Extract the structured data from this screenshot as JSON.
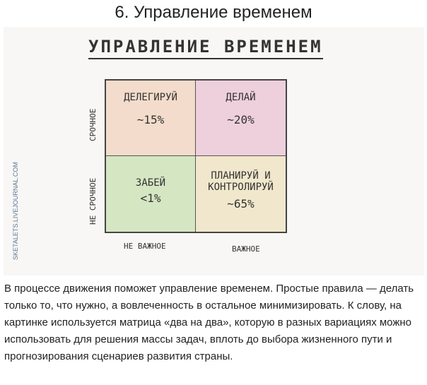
{
  "heading": "6. Управление временем",
  "picture": {
    "title": "УПРАВЛЕНИЕ ВРЕМЕНЕМ",
    "y_labels": [
      "СРОЧНОЕ",
      "НЕ СРОЧНОЕ"
    ],
    "x_labels": [
      "НЕ ВАЖНОЕ",
      "ВАЖНОЕ"
    ],
    "quadrants": [
      {
        "label": "ДЕЛЕГИРУЙ",
        "value": "~15%",
        "color": "#f3dccb"
      },
      {
        "label": "ДЕЛАЙ",
        "value": "~20%",
        "color": "#eecfdc"
      },
      {
        "label": "ЗАБЕЙ",
        "value": "<1%",
        "color": "#d5e6c2"
      },
      {
        "label": "ПЛАНИРУЙ И КОНТРОЛИРУЙ",
        "value": "~65%",
        "color": "#f1e7cc"
      }
    ],
    "watermark": "SKETALETS.LIVEJOURNAL.COM"
  },
  "body_text": "В процессе движения поможет управление временем. Простые правила — делать только то, что нужно, а вовлеченность в остальное минимизировать. К слову, на картинке используется матрица «два на два», которую в разных вариациях можно использовать для решения массы задач, вплоть до выбора жизненного пути и прогнозирования сценариев развития страны."
}
